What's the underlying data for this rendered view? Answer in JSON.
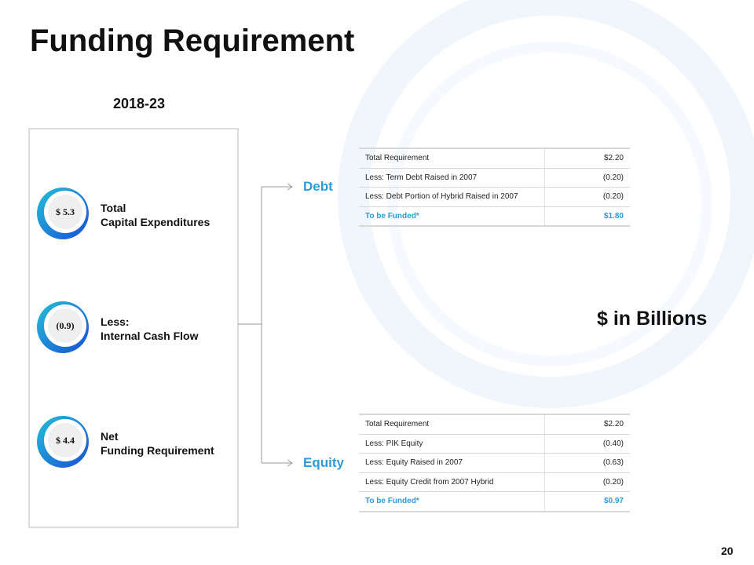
{
  "header": {
    "title": "Funding Requirement",
    "period": "2018-23"
  },
  "items": [
    {
      "value": "$ 5.3",
      "lines": [
        "Total",
        "Capital Expenditures"
      ]
    },
    {
      "value": "(0.9)",
      "lines": [
        "Less:",
        "Internal Cash Flow"
      ]
    },
    {
      "value": "$ 4.4",
      "lines": [
        "Net",
        "Funding Requirement"
      ]
    }
  ],
  "branches": [
    "Debt",
    "Equity"
  ],
  "tables": [
    {
      "rows": [
        [
          "Total Requirement",
          "$2.20"
        ],
        [
          "Less: Term Debt Raised in 2007",
          "(0.20)"
        ],
        [
          "Less: Debt Portion of Hybrid Raised in 2007",
          "(0.20)"
        ],
        [
          "To be Funded*",
          "$1.80"
        ]
      ]
    },
    {
      "rows": [
        [
          "Total Requirement",
          "$2.20"
        ],
        [
          "Less: PIK Equity",
          "(0.40)"
        ],
        [
          "Less: Equity Raised in 2007",
          "(0.63)"
        ],
        [
          "Less: Equity Credit from 2007 Hybrid",
          "(0.20)"
        ],
        [
          "To be Funded*",
          "$0.97"
        ]
      ]
    }
  ],
  "units": "$ in Billions",
  "page_number": "20"
}
